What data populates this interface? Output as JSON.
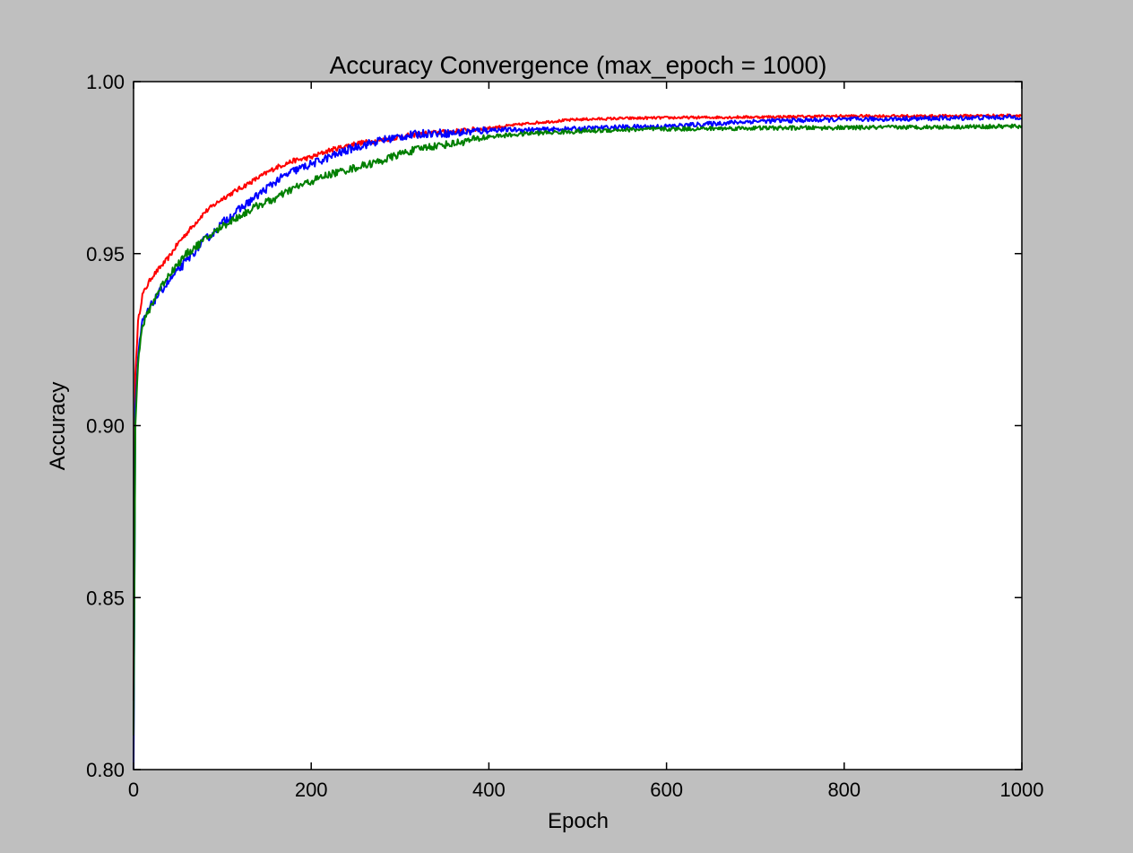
{
  "chart_data": {
    "type": "line",
    "title": "Accuracy Convergence (max_epoch = 1000)",
    "xlabel": "Epoch",
    "ylabel": "Accuracy",
    "xlim": [
      0,
      1000
    ],
    "ylim": [
      0.8,
      1.0
    ],
    "x_ticks": [
      "0",
      "200",
      "400",
      "600",
      "800",
      "1000"
    ],
    "y_ticks": [
      "0.80",
      "0.85",
      "0.90",
      "0.95",
      "1.00"
    ],
    "grid": false,
    "legend": "none",
    "series": [
      {
        "color": "#ff0000",
        "x": [
          0,
          2,
          5,
          10,
          20,
          30,
          40,
          50,
          60,
          70,
          80,
          90,
          100,
          120,
          140,
          160,
          180,
          200,
          220,
          250,
          280,
          300,
          330,
          360,
          400,
          450,
          500,
          550,
          600,
          700,
          800,
          900,
          1000
        ],
        "y": [
          0.82,
          0.915,
          0.93,
          0.938,
          0.943,
          0.946,
          0.949,
          0.953,
          0.956,
          0.959,
          0.962,
          0.964,
          0.966,
          0.969,
          0.972,
          0.975,
          0.977,
          0.978,
          0.98,
          0.982,
          0.983,
          0.984,
          0.985,
          0.9855,
          0.9865,
          0.988,
          0.989,
          0.9893,
          0.9895,
          0.9897,
          0.99,
          0.99,
          0.9902
        ]
      },
      {
        "color": "#0000ff",
        "x": [
          0,
          2,
          5,
          10,
          20,
          30,
          40,
          50,
          60,
          70,
          80,
          90,
          100,
          120,
          140,
          160,
          180,
          200,
          220,
          250,
          280,
          300,
          330,
          360,
          400,
          450,
          500,
          550,
          600,
          700,
          800,
          900,
          1000
        ],
        "y": [
          0.8,
          0.905,
          0.92,
          0.93,
          0.935,
          0.939,
          0.942,
          0.945,
          0.948,
          0.951,
          0.954,
          0.956,
          0.959,
          0.963,
          0.967,
          0.971,
          0.974,
          0.976,
          0.978,
          0.981,
          0.983,
          0.984,
          0.985,
          0.985,
          0.986,
          0.986,
          0.9863,
          0.9868,
          0.987,
          0.9885,
          0.989,
          0.9893,
          0.9897
        ]
      },
      {
        "color": "#007f00",
        "x": [
          0,
          2,
          5,
          10,
          20,
          30,
          40,
          50,
          60,
          70,
          80,
          90,
          100,
          120,
          140,
          160,
          180,
          200,
          220,
          250,
          280,
          300,
          330,
          360,
          400,
          450,
          500,
          550,
          600,
          700,
          800,
          900,
          1000
        ],
        "y": [
          0.81,
          0.9,
          0.918,
          0.929,
          0.935,
          0.94,
          0.944,
          0.947,
          0.95,
          0.952,
          0.954,
          0.956,
          0.958,
          0.961,
          0.964,
          0.966,
          0.969,
          0.971,
          0.973,
          0.975,
          0.977,
          0.979,
          0.981,
          0.982,
          0.984,
          0.985,
          0.9855,
          0.986,
          0.9862,
          0.9865,
          0.9866,
          0.9868,
          0.987
        ]
      }
    ]
  }
}
